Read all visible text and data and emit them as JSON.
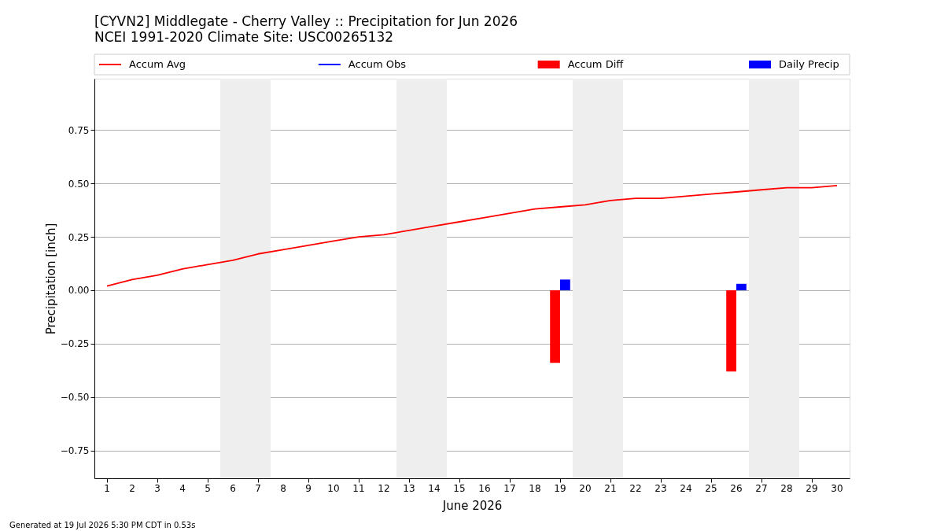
{
  "chart_data": {
    "type": "line",
    "title": "[CYVN2] Middlegate - Cherry Valley :: Precipitation for Jun 2026",
    "subtitle": "NCEI 1991-2020 Climate Site: USC00265132",
    "xlabel": "June 2026",
    "ylabel": "Precipitation [inch]",
    "x": [
      1,
      2,
      3,
      4,
      5,
      6,
      7,
      8,
      9,
      10,
      11,
      12,
      13,
      14,
      15,
      16,
      17,
      18,
      19,
      20,
      21,
      22,
      23,
      24,
      25,
      26,
      27,
      28,
      29,
      30
    ],
    "xlim": [
      0.5,
      30.5
    ],
    "xticks": [
      1,
      2,
      3,
      4,
      5,
      6,
      7,
      8,
      9,
      10,
      11,
      12,
      13,
      14,
      15,
      16,
      17,
      18,
      19,
      20,
      21,
      22,
      23,
      24,
      25,
      26,
      27,
      28,
      29,
      30
    ],
    "ylim": [
      -0.88,
      0.99
    ],
    "yticks": [
      {
        "value": -0.75,
        "label": "−0.75"
      },
      {
        "value": -0.5,
        "label": "−0.50"
      },
      {
        "value": -0.25,
        "label": "−0.25"
      },
      {
        "value": 0,
        "label": "0.00"
      },
      {
        "value": 0.25,
        "label": "0.25"
      },
      {
        "value": 0.5,
        "label": "0.50"
      },
      {
        "value": 0.75,
        "label": "0.75"
      }
    ],
    "grid": "y",
    "legend": "top",
    "bands": [
      {
        "axis": "x",
        "from": 5.5,
        "to": 7.5,
        "color": "#eeeeee"
      },
      {
        "axis": "x",
        "from": 12.5,
        "to": 14.5,
        "color": "#eeeeee"
      },
      {
        "axis": "x",
        "from": 19.5,
        "to": 21.5,
        "color": "#eeeeee"
      },
      {
        "axis": "x",
        "from": 26.5,
        "to": 28.5,
        "color": "#eeeeee"
      }
    ],
    "series": [
      {
        "name": "Accum Avg",
        "color": "#ff0000",
        "values": [
          0.02,
          0.05,
          0.07,
          0.1,
          0.12,
          0.14,
          0.17,
          0.19,
          0.21,
          0.23,
          0.25,
          0.26,
          0.28,
          0.3,
          0.32,
          0.34,
          0.36,
          0.38,
          0.39,
          0.4,
          0.42,
          0.43,
          0.43,
          0.44,
          0.45,
          0.46,
          0.47,
          0.48,
          0.48,
          0.49
        ]
      },
      {
        "name": "Accum Obs",
        "color": "#0000ff",
        "values": [
          null,
          null,
          null,
          null,
          null,
          null,
          null,
          null,
          null,
          null,
          null,
          null,
          null,
          null,
          null,
          null,
          null,
          null,
          null,
          null,
          null,
          null,
          null,
          null,
          null,
          null,
          null,
          null,
          null,
          null
        ]
      },
      {
        "name": "Accum Diff",
        "type": "bar",
        "color": "#ff0000",
        "values": [
          null,
          null,
          null,
          null,
          null,
          null,
          null,
          null,
          null,
          null,
          null,
          null,
          null,
          null,
          null,
          null,
          null,
          null,
          -0.34,
          null,
          null,
          null,
          null,
          null,
          null,
          -0.38,
          null,
          null,
          null,
          null
        ]
      },
      {
        "name": "Daily Precip",
        "type": "bar",
        "color": "#0000ff",
        "values": [
          null,
          null,
          null,
          null,
          null,
          null,
          null,
          null,
          null,
          null,
          null,
          null,
          null,
          null,
          null,
          null,
          null,
          null,
          0.05,
          null,
          null,
          null,
          null,
          null,
          null,
          0.03,
          null,
          null,
          null,
          null
        ]
      }
    ],
    "annotations": [
      "Generated at 19 Jul 2026 5:30 PM CDT in 0.53s"
    ]
  }
}
